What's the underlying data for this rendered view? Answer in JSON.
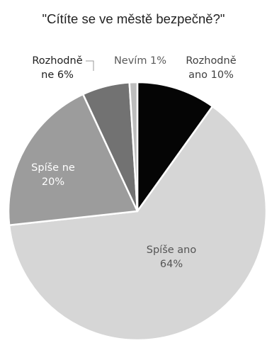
{
  "chart_data": {
    "type": "pie",
    "title": "\"Cítíte se ve městě bezpečně?\"",
    "start_angle_deg": 0,
    "direction": "clockwise",
    "slices": [
      {
        "label_line1": "Rozhodně",
        "label_line2": "ano 10%",
        "value": 10,
        "color": "#050505",
        "text_color": "#404040"
      },
      {
        "label_line1": "Spíše ano",
        "label_line2": "64%",
        "value": 64,
        "color": "#d6d6d6",
        "text_color": "#555555"
      },
      {
        "label_line1": "Spíše ne",
        "label_line2": "20%",
        "value": 20,
        "color": "#9c9c9c",
        "text_color": "#ffffff"
      },
      {
        "label_line1": "Rozhodně",
        "label_line2": "ne 6%",
        "value": 6,
        "color": "#727272",
        "text_color": "#202020"
      },
      {
        "label_line1": "Nevím 1%",
        "label_line2": "",
        "value": 1,
        "color": "#bdbdbd",
        "text_color": "#5a5a5a"
      }
    ],
    "legend": "none",
    "labels": "outside for small slices, inside for large"
  }
}
